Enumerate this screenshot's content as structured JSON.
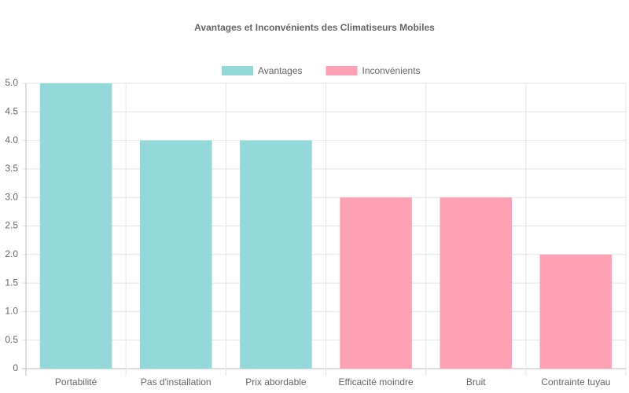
{
  "chart_data": {
    "type": "bar",
    "title": "Avantages et Inconvénients des Climatiseurs Mobiles",
    "categories": [
      "Portabilité",
      "Pas d'installation",
      "Prix abordable",
      "Efficacité moindre",
      "Bruit",
      "Contrainte tuyau"
    ],
    "series": [
      {
        "name": "Avantages",
        "color": "#93d9d9",
        "values": [
          5,
          4,
          4,
          null,
          null,
          null
        ]
      },
      {
        "name": "Inconvénients",
        "color": "#ffa1b5",
        "values": [
          null,
          null,
          null,
          3,
          3,
          2
        ]
      }
    ],
    "ylim": [
      0,
      5
    ],
    "yticks": [
      0,
      0.5,
      {
        "value": 1,
        "label": "1.0"
      },
      1.5,
      {
        "value": 2,
        "label": "2.0"
      },
      2.5,
      {
        "value": 3,
        "label": "3.0"
      },
      3.5,
      {
        "value": 4,
        "label": "4.0"
      },
      4.5,
      {
        "value": 5,
        "label": "5.0"
      }
    ],
    "grid": true,
    "legend": "top"
  }
}
